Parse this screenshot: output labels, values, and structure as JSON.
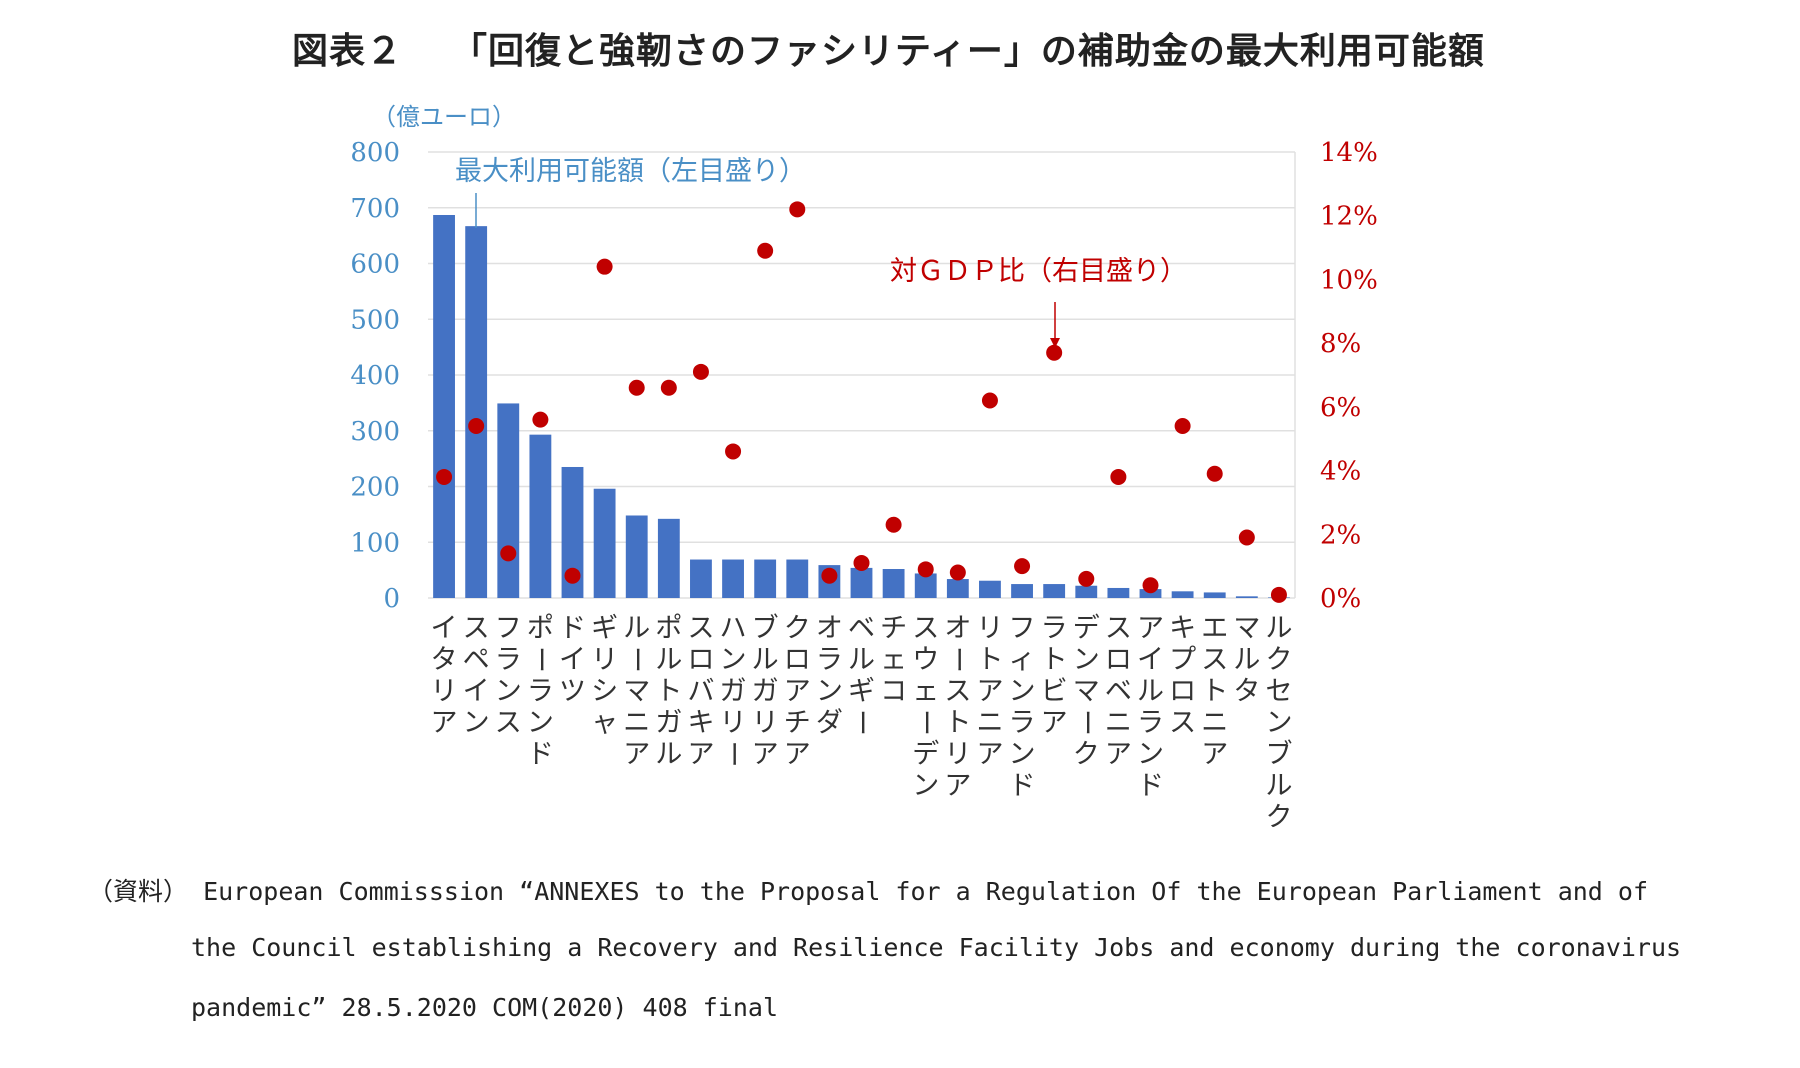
{
  "figure": {
    "number": "図表２",
    "title": "「回復と強靭さのファシリティー」の補助金の最大利用可能額"
  },
  "chart_data": {
    "type": "bar",
    "categories": [
      "イタリア",
      "スペイン",
      "フランス",
      "ポーランド",
      "ドイツ",
      "ギリシャ",
      "ルーマニア",
      "ポルトガル",
      "スロバキア",
      "ハンガリー",
      "ブルガリア",
      "クロアチア",
      "オランダ",
      "ベルギー",
      "チェコ",
      "スウェーデン",
      "オーストリア",
      "リトアニア",
      "フィンランド",
      "ラトビア",
      "デンマーク",
      "スロベニア",
      "アイルランド",
      "キプロス",
      "エストニア",
      "マルタ",
      "ルクセンブルク"
    ],
    "series": [
      {
        "name": "最大利用可能額（左目盛り）",
        "axis": "left",
        "color": "#4472C4",
        "values": [
          687,
          667,
          349,
          293,
          235,
          196,
          148,
          142,
          69,
          69,
          69,
          69,
          59,
          54,
          52,
          44,
          34,
          31,
          25,
          25,
          22,
          18,
          16,
          12,
          10,
          3,
          1
        ]
      },
      {
        "name": "対ＧＤＰ比（右目盛り）",
        "axis": "right",
        "color": "#C00000",
        "values": [
          3.8,
          5.4,
          1.4,
          5.6,
          0.7,
          10.4,
          6.6,
          6.6,
          7.1,
          4.6,
          10.9,
          12.2,
          0.7,
          1.1,
          2.3,
          0.9,
          0.8,
          6.2,
          1.0,
          7.7,
          0.6,
          3.8,
          0.4,
          5.4,
          3.9,
          1.9,
          0.1
        ]
      }
    ],
    "ylabel": "（億ユーロ）",
    "ylim": [
      0,
      800
    ],
    "yticks": [
      0,
      100,
      200,
      300,
      400,
      500,
      600,
      700,
      800
    ],
    "y2lim": [
      0,
      14
    ],
    "y2ticks": [
      "0%",
      "2%",
      "4%",
      "6%",
      "8%",
      "10%",
      "12%",
      "14%"
    ],
    "grid": true,
    "annotations": {
      "bar_label": "最大利用可能額（左目盛り）",
      "dot_label": "対ＧＤＰ比（右目盛り）"
    },
    "colors": {
      "left_axis": "#4a8fc6",
      "right_axis": "#C00000",
      "grid": "#e0e0e0"
    }
  },
  "source": {
    "label": "（資料）",
    "lines": [
      "European Commisssion “ANNEXES to the Proposal for a Regulation Of the European Parliament and of",
      "the Council establishing a Recovery and Resilience Facility Jobs and economy during the coronavirus",
      "pandemic” 28.5.2020 COM(2020) 408 final"
    ]
  }
}
